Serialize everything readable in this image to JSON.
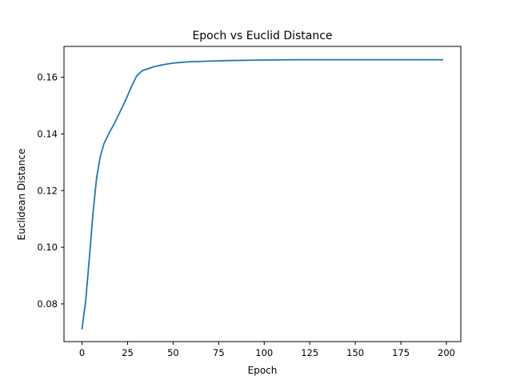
{
  "chart_data": {
    "type": "line",
    "title": "Epoch vs Euclid Distance",
    "xlabel": "Epoch",
    "ylabel": "Euclidean Distance",
    "xlim": [
      -9.9,
      207.9
    ],
    "ylim": [
      0.0667,
      0.1709
    ],
    "xticks": [
      0,
      25,
      50,
      75,
      100,
      125,
      150,
      175,
      200
    ],
    "xtick_labels": [
      "0",
      "25",
      "50",
      "75",
      "100",
      "125",
      "150",
      "175",
      "200"
    ],
    "yticks": [
      0.08,
      0.1,
      0.12,
      0.14,
      0.16
    ],
    "ytick_labels": [
      "0.08",
      "0.10",
      "0.12",
      "0.14",
      "0.16"
    ],
    "grid": false,
    "series": [
      {
        "color": "#1f77b4",
        "x": [
          0,
          2,
          4,
          6,
          8,
          10,
          12,
          15,
          18,
          21,
          24,
          27,
          30,
          33,
          36,
          40,
          45,
          50,
          55,
          60,
          70,
          80,
          90,
          100,
          120,
          140,
          160,
          180,
          198
        ],
        "y": [
          0.0712,
          0.081,
          0.096,
          0.112,
          0.1245,
          0.132,
          0.1365,
          0.1405,
          0.144,
          0.148,
          0.152,
          0.1565,
          0.1605,
          0.1623,
          0.163,
          0.1638,
          0.1645,
          0.165,
          0.1653,
          0.1655,
          0.1657,
          0.1659,
          0.166,
          0.1661,
          0.1662,
          0.1662,
          0.1662,
          0.1662,
          0.1662
        ]
      }
    ]
  }
}
